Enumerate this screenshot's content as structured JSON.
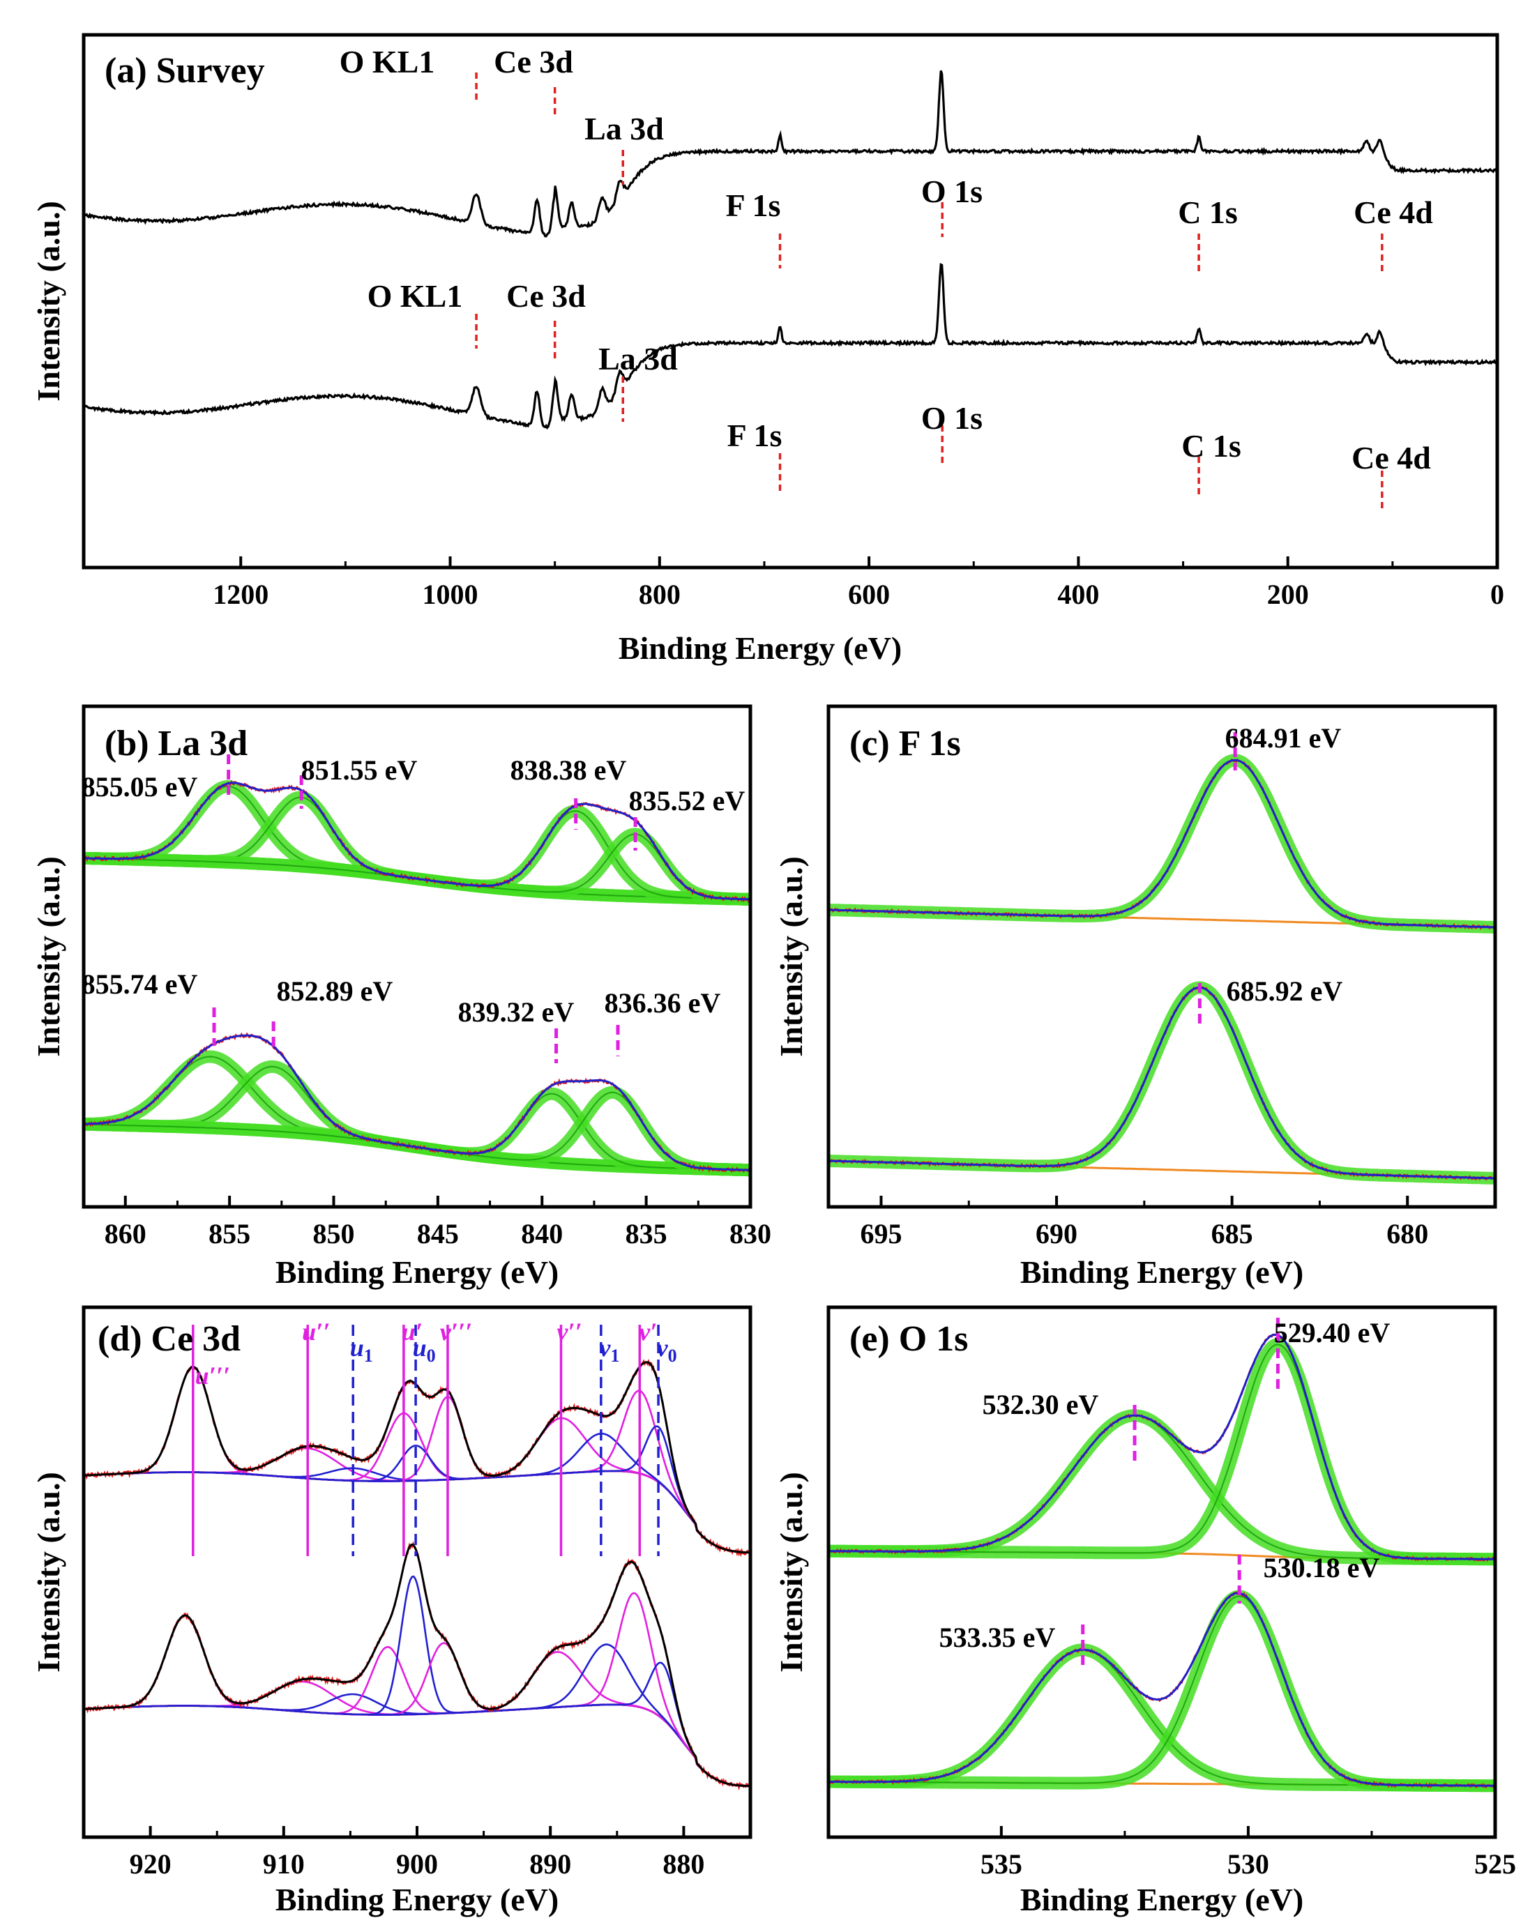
{
  "chart_data": [
    {
      "type": "line",
      "panel": "a",
      "title": "(a) Survey",
      "xlabel": "Binding Energy (eV)",
      "ylabel": "Intensity (a.u.)",
      "xlim": [
        1350,
        0
      ],
      "xticks": [
        1200,
        1000,
        800,
        600,
        400,
        200,
        0
      ],
      "traces": [
        {
          "offset": 1.0,
          "annotations": [
            {
              "label": "O KL1",
              "x": 975
            },
            {
              "label": "Ce 3d",
              "x": 900
            },
            {
              "label": "La 3d",
              "x": 835
            },
            {
              "label": "F 1s",
              "x": 685
            },
            {
              "label": "O 1s",
              "x": 530
            },
            {
              "label": "C 1s",
              "x": 285
            },
            {
              "label": "Ce 4d",
              "x": 110
            }
          ]
        },
        {
          "offset": 0.0,
          "annotations": [
            {
              "label": "O KL1",
              "x": 975
            },
            {
              "label": "Ce 3d",
              "x": 900
            },
            {
              "label": "La 3d",
              "x": 835
            },
            {
              "label": "F 1s",
              "x": 685
            },
            {
              "label": "O 1s",
              "x": 530
            },
            {
              "label": "C 1s",
              "x": 285
            },
            {
              "label": "Ce 4d",
              "x": 110
            }
          ]
        }
      ]
    },
    {
      "type": "line",
      "panel": "b",
      "title": "(b) La 3d",
      "xlabel": "Binding Energy (eV)",
      "ylabel": "Intensity (a.u.)",
      "xlim": [
        862,
        830
      ],
      "xticks": [
        860,
        855,
        850,
        845,
        840,
        835,
        830
      ],
      "traces": [
        {
          "offset": 1.0,
          "peaks": [
            {
              "label": "855.05 eV",
              "x": 855.05
            },
            {
              "label": "851.55 eV",
              "x": 851.55
            },
            {
              "label": "838.38 eV",
              "x": 838.38
            },
            {
              "label": "835.52 eV",
              "x": 835.52
            }
          ]
        },
        {
          "offset": 0.0,
          "peaks": [
            {
              "label": "855.74 eV",
              "x": 855.74
            },
            {
              "label": "852.89 eV",
              "x": 852.89
            },
            {
              "label": "839.32 eV",
              "x": 839.32
            },
            {
              "label": "836.36 eV",
              "x": 836.36
            }
          ]
        }
      ]
    },
    {
      "type": "line",
      "panel": "c",
      "title": "(c) F 1s",
      "xlabel": "Binding Energy (eV)",
      "ylabel": "Intensity (a.u.)",
      "xlim": [
        696.5,
        677.5
      ],
      "xticks": [
        695,
        690,
        685,
        680
      ],
      "traces": [
        {
          "offset": 1.0,
          "peaks": [
            {
              "label": "684.91 eV",
              "x": 684.91
            }
          ]
        },
        {
          "offset": 0.0,
          "peaks": [
            {
              "label": "685.92 eV",
              "x": 685.92
            }
          ]
        }
      ]
    },
    {
      "type": "line",
      "panel": "d",
      "title": "(d) Ce 3d",
      "xlabel": "Binding Energy (eV)",
      "ylabel": "Intensity (a.u.)",
      "xlim": [
        925,
        875
      ],
      "xticks": [
        920,
        910,
        900,
        890,
        880
      ],
      "components": [
        {
          "label": "u'''",
          "x": 916.8,
          "color": "#e020e0",
          "style": "solid"
        },
        {
          "label": "u''",
          "x": 908.2,
          "color": "#e020e0",
          "style": "solid"
        },
        {
          "label": "u1",
          "x": 904.8,
          "color": "#2020d0",
          "style": "dashed"
        },
        {
          "label": "u'",
          "x": 901.0,
          "color": "#e020e0",
          "style": "solid"
        },
        {
          "label": "u0",
          "x": 900.1,
          "color": "#2020d0",
          "style": "dashed"
        },
        {
          "label": "v'''",
          "x": 897.7,
          "color": "#e020e0",
          "style": "solid"
        },
        {
          "label": "v''",
          "x": 889.2,
          "color": "#e020e0",
          "style": "solid"
        },
        {
          "label": "v1",
          "x": 886.2,
          "color": "#2020d0",
          "style": "dashed"
        },
        {
          "label": "v'",
          "x": 883.3,
          "color": "#e020e0",
          "style": "solid"
        },
        {
          "label": "v0",
          "x": 881.9,
          "color": "#2020d0",
          "style": "dashed"
        }
      ]
    },
    {
      "type": "line",
      "panel": "e",
      "title": "(e) O 1s",
      "xlabel": "Binding Energy (eV)",
      "ylabel": "Intensity (a.u.)",
      "xlim": [
        538.5,
        525
      ],
      "xticks": [
        535,
        530,
        525
      ],
      "traces": [
        {
          "offset": 1.0,
          "peaks": [
            {
              "label": "532.30 eV",
              "x": 532.3
            },
            {
              "label": "529.40 eV",
              "x": 529.4
            }
          ]
        },
        {
          "offset": 0.0,
          "peaks": [
            {
              "label": "533.35 eV",
              "x": 533.35
            },
            {
              "label": "530.18 eV",
              "x": 530.18
            }
          ]
        }
      ]
    }
  ]
}
